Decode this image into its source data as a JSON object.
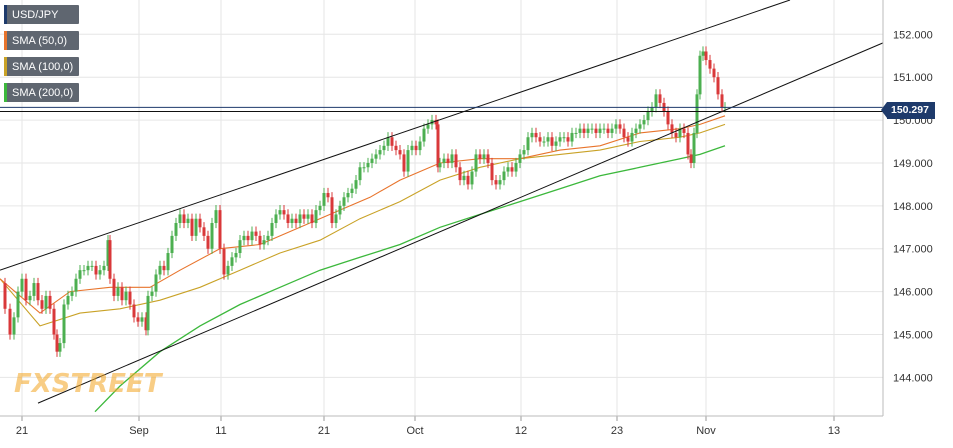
{
  "legend": [
    {
      "label": "USD/JPY",
      "color": "#1e3a6b"
    },
    {
      "label": "SMA (50,0)",
      "color": "#e8742c"
    },
    {
      "label": "SMA (100,0)",
      "color": "#c9a227"
    },
    {
      "label": "SMA (200,0)",
      "color": "#3cb83c"
    }
  ],
  "price_tag": "150.297",
  "watermark": "FXSTREET",
  "chart_data": {
    "type": "line",
    "y_ticks": [
      "152.000",
      "151.000",
      "150.000",
      "149.000",
      "148.000",
      "147.000",
      "146.000",
      "145.000",
      "144.000"
    ],
    "y_tick_values": [
      152,
      151,
      150,
      149,
      148,
      147,
      146,
      145,
      144
    ],
    "x_ticks": [
      "21",
      "Sep",
      "11",
      "21",
      "Oct",
      "12",
      "23",
      "Nov",
      "13"
    ],
    "ylim": [
      143.1,
      152.8
    ],
    "current_price": 150.297,
    "horizontal_levels": [
      150.297,
      150.2
    ],
    "colors": {
      "up": "#4caf50",
      "down": "#d9383a",
      "sma50": "#e8742c",
      "sma100": "#c9a227",
      "sma200": "#3cb83c",
      "trend": "#111111",
      "price_line": "#1e3a6b"
    },
    "price_path": [
      [
        0,
        146.2
      ],
      [
        5,
        145.6
      ],
      [
        10,
        145.0
      ],
      [
        14,
        145.4
      ],
      [
        18,
        146.0
      ],
      [
        22,
        146.3
      ],
      [
        26,
        145.8
      ],
      [
        30,
        145.9
      ],
      [
        34,
        146.2
      ],
      [
        38,
        145.8
      ],
      [
        42,
        145.6
      ],
      [
        46,
        145.9
      ],
      [
        50,
        145.6
      ],
      [
        54,
        145.0
      ],
      [
        57,
        144.6
      ],
      [
        60,
        144.8
      ],
      [
        64,
        145.7
      ],
      [
        68,
        145.9
      ],
      [
        72,
        146.0
      ],
      [
        76,
        146.3
      ],
      [
        80,
        146.5
      ],
      [
        84,
        146.5
      ],
      [
        88,
        146.6
      ],
      [
        92,
        146.6
      ],
      [
        96,
        146.4
      ],
      [
        100,
        146.5
      ],
      [
        104,
        146.6
      ],
      [
        108,
        147.2
      ],
      [
        110,
        146.3
      ],
      [
        114,
        145.9
      ],
      [
        118,
        146.1
      ],
      [
        122,
        145.8
      ],
      [
        126,
        146.0
      ],
      [
        130,
        145.7
      ],
      [
        134,
        145.4
      ],
      [
        138,
        145.3
      ],
      [
        142,
        145.4
      ],
      [
        146,
        145.1
      ],
      [
        148,
        145.9
      ],
      [
        152,
        146.0
      ],
      [
        156,
        146.4
      ],
      [
        160,
        146.6
      ],
      [
        164,
        146.5
      ],
      [
        168,
        146.9
      ],
      [
        172,
        147.3
      ],
      [
        176,
        147.6
      ],
      [
        180,
        147.8
      ],
      [
        184,
        147.6
      ],
      [
        188,
        147.7
      ],
      [
        192,
        147.3
      ],
      [
        196,
        147.7
      ],
      [
        200,
        147.5
      ],
      [
        204,
        147.3
      ],
      [
        208,
        147.0
      ],
      [
        212,
        147.6
      ],
      [
        216,
        147.9
      ],
      [
        220,
        147.0
      ],
      [
        224,
        146.4
      ],
      [
        228,
        146.6
      ],
      [
        232,
        146.8
      ],
      [
        236,
        146.9
      ],
      [
        240,
        147.2
      ],
      [
        244,
        147.3
      ],
      [
        248,
        147.2
      ],
      [
        252,
        147.4
      ],
      [
        256,
        147.3
      ],
      [
        260,
        147.1
      ],
      [
        264,
        147.2
      ],
      [
        268,
        147.3
      ],
      [
        272,
        147.6
      ],
      [
        276,
        147.8
      ],
      [
        280,
        147.9
      ],
      [
        284,
        147.8
      ],
      [
        288,
        147.6
      ],
      [
        292,
        147.7
      ],
      [
        296,
        147.6
      ],
      [
        300,
        147.8
      ],
      [
        304,
        147.7
      ],
      [
        308,
        147.8
      ],
      [
        312,
        147.6
      ],
      [
        316,
        147.9
      ],
      [
        320,
        148.0
      ],
      [
        324,
        148.3
      ],
      [
        328,
        148.2
      ],
      [
        332,
        147.6
      ],
      [
        336,
        147.8
      ],
      [
        340,
        148.0
      ],
      [
        344,
        148.2
      ],
      [
        348,
        148.3
      ],
      [
        352,
        148.4
      ],
      [
        356,
        148.6
      ],
      [
        360,
        148.9
      ],
      [
        364,
        148.9
      ],
      [
        368,
        149.0
      ],
      [
        372,
        149.1
      ],
      [
        376,
        149.2
      ],
      [
        380,
        149.3
      ],
      [
        384,
        149.4
      ],
      [
        388,
        149.6
      ],
      [
        392,
        149.4
      ],
      [
        396,
        149.3
      ],
      [
        400,
        149.2
      ],
      [
        404,
        148.8
      ],
      [
        408,
        149.3
      ],
      [
        412,
        149.4
      ],
      [
        416,
        149.3
      ],
      [
        420,
        149.5
      ],
      [
        424,
        149.8
      ],
      [
        428,
        149.9
      ],
      [
        432,
        150.0
      ],
      [
        436,
        149.9
      ],
      [
        438,
        148.9
      ],
      [
        440,
        149.0
      ],
      [
        444,
        149.1
      ],
      [
        448,
        149.0
      ],
      [
        452,
        149.2
      ],
      [
        456,
        148.9
      ],
      [
        460,
        148.6
      ],
      [
        464,
        148.7
      ],
      [
        468,
        148.5
      ],
      [
        472,
        148.8
      ],
      [
        476,
        149.2
      ],
      [
        480,
        149.1
      ],
      [
        484,
        149.2
      ],
      [
        488,
        149.0
      ],
      [
        492,
        148.6
      ],
      [
        496,
        148.5
      ],
      [
        500,
        148.6
      ],
      [
        504,
        148.8
      ],
      [
        508,
        148.9
      ],
      [
        512,
        148.8
      ],
      [
        516,
        149.0
      ],
      [
        520,
        149.2
      ],
      [
        524,
        149.3
      ],
      [
        528,
        149.6
      ],
      [
        532,
        149.7
      ],
      [
        536,
        149.6
      ],
      [
        540,
        149.5
      ],
      [
        544,
        149.5
      ],
      [
        548,
        149.6
      ],
      [
        552,
        149.4
      ],
      [
        556,
        149.5
      ],
      [
        560,
        149.6
      ],
      [
        564,
        149.6
      ],
      [
        568,
        149.5
      ],
      [
        572,
        149.7
      ],
      [
        576,
        149.7
      ],
      [
        580,
        149.8
      ],
      [
        584,
        149.7
      ],
      [
        588,
        149.8
      ],
      [
        592,
        149.8
      ],
      [
        596,
        149.7
      ],
      [
        600,
        149.8
      ],
      [
        604,
        149.8
      ],
      [
        608,
        149.7
      ],
      [
        612,
        149.8
      ],
      [
        616,
        149.9
      ],
      [
        620,
        149.8
      ],
      [
        624,
        149.6
      ],
      [
        628,
        149.5
      ],
      [
        632,
        149.7
      ],
      [
        636,
        149.8
      ],
      [
        640,
        149.9
      ],
      [
        644,
        150.0
      ],
      [
        648,
        150.2
      ],
      [
        652,
        150.3
      ],
      [
        656,
        150.6
      ],
      [
        660,
        150.4
      ],
      [
        664,
        150.2
      ],
      [
        668,
        149.9
      ],
      [
        672,
        149.7
      ],
      [
        676,
        149.6
      ],
      [
        680,
        149.8
      ],
      [
        684,
        149.7
      ],
      [
        688,
        149.2
      ],
      [
        691,
        149.0
      ],
      [
        694,
        149.7
      ],
      [
        697,
        150.6
      ],
      [
        700,
        151.5
      ],
      [
        703,
        151.6
      ],
      [
        706,
        151.4
      ],
      [
        710,
        151.2
      ],
      [
        714,
        151.0
      ],
      [
        718,
        150.6
      ],
      [
        722,
        150.3
      ],
      [
        725,
        150.3
      ]
    ],
    "sma50": [
      [
        0,
        146.3
      ],
      [
        40,
        145.5
      ],
      [
        70,
        146.0
      ],
      [
        110,
        146.1
      ],
      [
        150,
        146.1
      ],
      [
        180,
        146.5
      ],
      [
        220,
        147.0
      ],
      [
        260,
        147.1
      ],
      [
        300,
        147.5
      ],
      [
        330,
        147.8
      ],
      [
        370,
        148.2
      ],
      [
        400,
        148.6
      ],
      [
        440,
        149.0
      ],
      [
        480,
        149.1
      ],
      [
        520,
        149.1
      ],
      [
        560,
        149.3
      ],
      [
        600,
        149.4
      ],
      [
        640,
        149.7
      ],
      [
        680,
        149.8
      ],
      [
        700,
        149.9
      ],
      [
        725,
        150.1
      ]
    ],
    "sma100": [
      [
        0,
        146.3
      ],
      [
        40,
        145.2
      ],
      [
        80,
        145.5
      ],
      [
        120,
        145.6
      ],
      [
        160,
        145.8
      ],
      [
        200,
        146.1
      ],
      [
        240,
        146.5
      ],
      [
        280,
        146.9
      ],
      [
        320,
        147.2
      ],
      [
        360,
        147.7
      ],
      [
        400,
        148.1
      ],
      [
        440,
        148.6
      ],
      [
        480,
        148.9
      ],
      [
        520,
        149.1
      ],
      [
        560,
        149.2
      ],
      [
        600,
        149.3
      ],
      [
        640,
        149.5
      ],
      [
        680,
        149.6
      ],
      [
        700,
        149.7
      ],
      [
        725,
        149.9
      ]
    ],
    "sma200": [
      [
        95,
        143.2
      ],
      [
        120,
        143.8
      ],
      [
        160,
        144.6
      ],
      [
        200,
        145.2
      ],
      [
        240,
        145.7
      ],
      [
        280,
        146.1
      ],
      [
        320,
        146.5
      ],
      [
        360,
        146.8
      ],
      [
        400,
        147.1
      ],
      [
        440,
        147.5
      ],
      [
        480,
        147.8
      ],
      [
        520,
        148.1
      ],
      [
        560,
        148.4
      ],
      [
        600,
        148.7
      ],
      [
        640,
        148.9
      ],
      [
        680,
        149.1
      ],
      [
        700,
        149.2
      ],
      [
        725,
        149.4
      ]
    ],
    "trendlines": [
      [
        [
          0,
          146.5
        ],
        [
          790,
          152.8
        ]
      ],
      [
        [
          38,
          143.4
        ],
        [
          883,
          151.8
        ]
      ]
    ]
  }
}
